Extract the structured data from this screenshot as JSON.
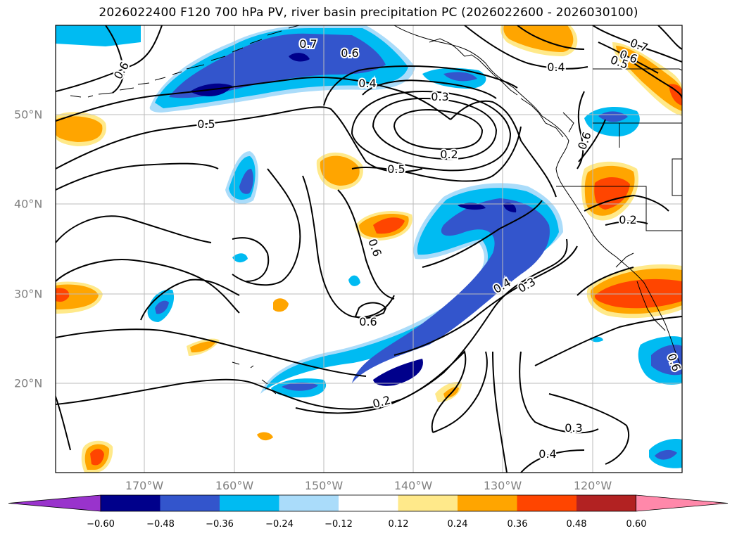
{
  "title": "2026022400 F120 700 hPa PV, river basin precipitation PC (2026022600 - 2026030100)",
  "lon_labels": [
    "170°W",
    "160°W",
    "150°W",
    "140°W",
    "130°W",
    "120°W"
  ],
  "lat_labels": [
    "50°N",
    "40°N",
    "30°N",
    "20°N"
  ],
  "contour_labels": [
    "0.7",
    "0.6",
    "0.6",
    "0.4",
    "0.3",
    "0.4",
    "0.7",
    "0.6",
    "0.5",
    "0.5",
    "0.2",
    "0.5",
    "0.6",
    "0.6",
    "0.2",
    "0.4",
    "0.3",
    "0.6",
    "0.2",
    "0.3",
    "0.4",
    "0.6"
  ],
  "colorbar": {
    "colors": [
      "#9933cc",
      "#00008b",
      "#3355cc",
      "#00bbf2",
      "#aadcfa",
      "#ffffff",
      "#ffe98a",
      "#ffa500",
      "#ff4500",
      "#b22222",
      "#ff88aa"
    ],
    "ticks": [
      "−0.60",
      "−0.48",
      "−0.36",
      "−0.24",
      "−0.12",
      "0.12",
      "0.24",
      "0.36",
      "0.48",
      "0.60"
    ]
  }
}
